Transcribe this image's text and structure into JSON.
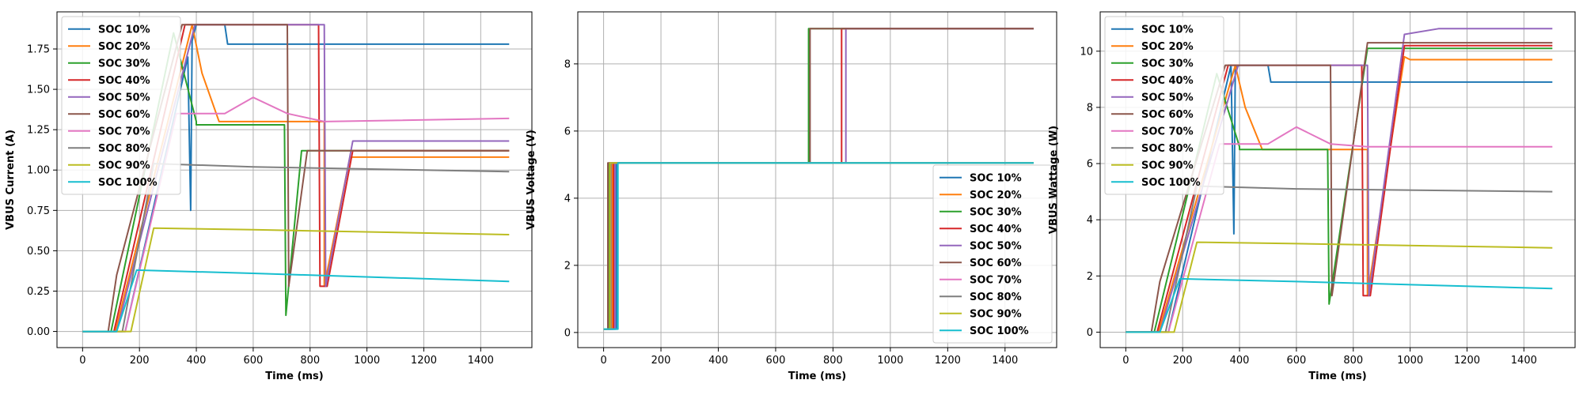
{
  "series_colors": [
    "#1f77b4",
    "#ff7f0e",
    "#2ca02c",
    "#d62728",
    "#9467bd",
    "#8c564b",
    "#e377c2",
    "#7f7f7f",
    "#bcbd22",
    "#17becf"
  ],
  "chart_data": [
    {
      "type": "line",
      "xlabel": "Time (ms)",
      "ylabel": "VBUS Current (A)",
      "xlim": [
        -90,
        1580
      ],
      "ylim": [
        -0.1,
        1.98
      ],
      "xticks": [
        0,
        200,
        400,
        600,
        800,
        1000,
        1200,
        1400
      ],
      "yticks": [
        "0.00",
        "0.25",
        "0.50",
        "0.75",
        "1.00",
        "1.25",
        "1.50",
        "1.75"
      ],
      "grid": true,
      "legend": "upper-left",
      "series": [
        {
          "name": "SOC 10%",
          "x": [
            0,
            150,
            370,
            380,
            385,
            400,
            500,
            510,
            1500
          ],
          "y": [
            0,
            0,
            1.7,
            0.75,
            1.8,
            1.9,
            1.9,
            1.78,
            1.78
          ]
        },
        {
          "name": "SOC 20%",
          "x": [
            0,
            115,
            385,
            420,
            480,
            480,
            850,
            850,
            940,
            960,
            1500
          ],
          "y": [
            0,
            0,
            1.9,
            1.6,
            1.3,
            1.3,
            1.3,
            0.28,
            1.08,
            1.08,
            1.08
          ]
        },
        {
          "name": "SOC 30%",
          "x": [
            0,
            100,
            320,
            400,
            400,
            710,
            715,
            770,
            1500
          ],
          "y": [
            0,
            0,
            1.85,
            1.3,
            1.28,
            1.28,
            0.1,
            1.12,
            1.12
          ]
        },
        {
          "name": "SOC 40%",
          "x": [
            0,
            110,
            360,
            830,
            835,
            860,
            950,
            1500
          ],
          "y": [
            0,
            0,
            1.9,
            1.9,
            0.28,
            0.28,
            1.12,
            1.12
          ]
        },
        {
          "name": "SOC 50%",
          "x": [
            0,
            120,
            395,
            850,
            855,
            950,
            1500
          ],
          "y": [
            0,
            0,
            1.9,
            1.9,
            0.28,
            1.18,
            1.18
          ]
        },
        {
          "name": "SOC 60%",
          "x": [
            0,
            90,
            120,
            350,
            720,
            725,
            790,
            1500
          ],
          "y": [
            0,
            0,
            0.35,
            1.9,
            1.9,
            0.28,
            1.12,
            1.12
          ]
        },
        {
          "name": "SOC 70%",
          "x": [
            0,
            150,
            330,
            500,
            550,
            600,
            720,
            850,
            1500
          ],
          "y": [
            0,
            0,
            1.35,
            1.35,
            1.4,
            1.45,
            1.35,
            1.3,
            1.32
          ]
        },
        {
          "name": "SOC 80%",
          "x": [
            0,
            140,
            250,
            600,
            1500
          ],
          "y": [
            0,
            0,
            1.04,
            1.02,
            0.99
          ]
        },
        {
          "name": "SOC 90%",
          "x": [
            0,
            170,
            250,
            600,
            1500
          ],
          "y": [
            0,
            0,
            0.64,
            0.63,
            0.6
          ]
        },
        {
          "name": "SOC 100%",
          "x": [
            0,
            120,
            190,
            600,
            1500
          ],
          "y": [
            0,
            0,
            0.38,
            0.36,
            0.31
          ]
        }
      ]
    },
    {
      "type": "line",
      "xlabel": "Time (ms)",
      "ylabel": "VBUS Voltage (V)",
      "xlim": [
        -90,
        1580
      ],
      "ylim": [
        -0.45,
        9.55
      ],
      "xticks": [
        0,
        200,
        400,
        600,
        800,
        1000,
        1200,
        1400
      ],
      "yticks": [
        "0",
        "2",
        "4",
        "6",
        "8"
      ],
      "grid": true,
      "legend": "lower-right",
      "series": [
        {
          "name": "SOC 10%",
          "x": [
            0,
            45,
            45,
            1500
          ],
          "y": [
            0.1,
            0.1,
            5.05,
            5.05
          ]
        },
        {
          "name": "SOC 20%",
          "x": [
            0,
            30,
            30,
            1500
          ],
          "y": [
            0.1,
            0.1,
            5.05,
            5.05
          ]
        },
        {
          "name": "SOC 30%",
          "x": [
            0,
            20,
            20,
            715,
            715,
            1500
          ],
          "y": [
            0.1,
            0.1,
            5.05,
            5.05,
            9.05,
            9.05
          ]
        },
        {
          "name": "SOC 40%",
          "x": [
            0,
            35,
            35,
            830,
            830,
            1500
          ],
          "y": [
            0.1,
            0.1,
            5.05,
            5.05,
            9.05,
            9.05
          ]
        },
        {
          "name": "SOC 50%",
          "x": [
            0,
            40,
            40,
            845,
            845,
            1500
          ],
          "y": [
            0.1,
            0.1,
            5.05,
            5.05,
            9.05,
            9.05
          ]
        },
        {
          "name": "SOC 60%",
          "x": [
            0,
            15,
            15,
            720,
            720,
            1500
          ],
          "y": [
            0.1,
            0.1,
            5.05,
            5.05,
            9.05,
            9.05
          ]
        },
        {
          "name": "SOC 70%",
          "x": [
            0,
            25,
            25,
            1500
          ],
          "y": [
            0.1,
            0.1,
            5.05,
            5.05
          ]
        },
        {
          "name": "SOC 80%",
          "x": [
            0,
            25,
            25,
            1500
          ],
          "y": [
            0.1,
            0.1,
            5.05,
            5.05
          ]
        },
        {
          "name": "SOC 90%",
          "x": [
            0,
            22,
            22,
            1500
          ],
          "y": [
            0.1,
            0.1,
            5.05,
            5.05
          ]
        },
        {
          "name": "SOC 100%",
          "x": [
            0,
            50,
            50,
            1500
          ],
          "y": [
            0.1,
            0.1,
            5.05,
            5.05
          ]
        }
      ]
    },
    {
      "type": "line",
      "xlabel": "Time (ms)",
      "ylabel": "VBUS Wattage (W)",
      "xlim": [
        -90,
        1580
      ],
      "ylim": [
        -0.55,
        11.4
      ],
      "xticks": [
        0,
        200,
        400,
        600,
        800,
        1000,
        1200,
        1400
      ],
      "yticks": [
        "0",
        "2",
        "4",
        "6",
        "8",
        "10"
      ],
      "grid": true,
      "legend": "upper-left",
      "series": [
        {
          "name": "SOC 10%",
          "x": [
            0,
            150,
            370,
            380,
            385,
            400,
            500,
            510,
            1500
          ],
          "y": [
            0,
            0,
            9.5,
            3.5,
            9.4,
            9.5,
            9.5,
            8.9,
            8.9
          ]
        },
        {
          "name": "SOC 20%",
          "x": [
            0,
            115,
            385,
            420,
            480,
            480,
            850,
            850,
            980,
            1000,
            1500
          ],
          "y": [
            0,
            0,
            9.5,
            8.0,
            6.5,
            6.5,
            6.5,
            1.3,
            9.8,
            9.7,
            9.7
          ]
        },
        {
          "name": "SOC 30%",
          "x": [
            0,
            100,
            320,
            400,
            400,
            710,
            715,
            850,
            1500
          ],
          "y": [
            0,
            0,
            9.2,
            6.6,
            6.5,
            6.5,
            1.0,
            10.1,
            10.1
          ]
        },
        {
          "name": "SOC 40%",
          "x": [
            0,
            110,
            360,
            830,
            835,
            860,
            980,
            1500
          ],
          "y": [
            0,
            0,
            9.5,
            9.5,
            1.3,
            1.3,
            10.2,
            10.2
          ]
        },
        {
          "name": "SOC 50%",
          "x": [
            0,
            120,
            395,
            850,
            855,
            980,
            1100,
            1500
          ],
          "y": [
            0,
            0,
            9.5,
            9.5,
            1.3,
            10.6,
            10.8,
            10.8
          ]
        },
        {
          "name": "SOC 60%",
          "x": [
            0,
            90,
            120,
            350,
            720,
            725,
            850,
            1500
          ],
          "y": [
            0,
            0,
            1.8,
            9.5,
            9.5,
            1.3,
            10.3,
            10.3
          ]
        },
        {
          "name": "SOC 70%",
          "x": [
            0,
            150,
            330,
            500,
            550,
            600,
            720,
            850,
            1500
          ],
          "y": [
            0,
            0,
            6.7,
            6.7,
            7.0,
            7.3,
            6.7,
            6.6,
            6.6
          ]
        },
        {
          "name": "SOC 80%",
          "x": [
            0,
            140,
            250,
            600,
            1500
          ],
          "y": [
            0,
            0,
            5.2,
            5.1,
            5.0
          ]
        },
        {
          "name": "SOC 90%",
          "x": [
            0,
            170,
            250,
            600,
            1500
          ],
          "y": [
            0,
            0,
            3.2,
            3.15,
            3.0
          ]
        },
        {
          "name": "SOC 100%",
          "x": [
            0,
            120,
            190,
            600,
            1500
          ],
          "y": [
            0,
            0,
            1.9,
            1.8,
            1.55
          ]
        }
      ]
    }
  ]
}
